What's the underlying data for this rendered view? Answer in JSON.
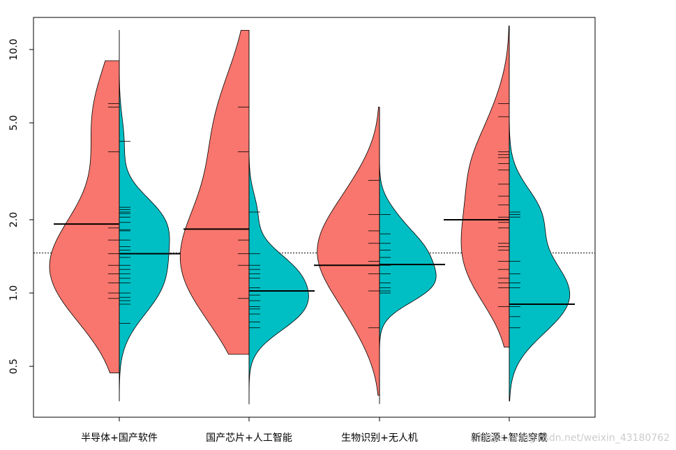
{
  "chart_data": {
    "type": "split-violin (bean plot)",
    "y_scale": "log",
    "ylim": [
      0.3,
      15
    ],
    "y_ticks": [
      0.5,
      1.0,
      2.0,
      5.0,
      10.0
    ],
    "y_tick_labels": [
      "0.5",
      "1.0",
      "2.0",
      "5.0",
      "10.0"
    ],
    "overall_reference_line": 1.46,
    "colors": {
      "left": "#F8766D",
      "right": "#00BFC4"
    },
    "categories": [
      "半导体+国产软件",
      "国产芯片+人工智能",
      "生物识别+无人机",
      "新能源+智能穿戴"
    ],
    "groups": [
      {
        "category": "半导体+国产软件",
        "left": {
          "mean": 1.92,
          "range": [
            0.47,
            9.0
          ],
          "points": [
            0.95,
            1.0,
            1.1,
            1.2,
            1.3,
            1.45,
            1.65,
            1.85,
            3.8,
            5.8,
            6.0
          ]
        },
        "right": {
          "mean": 1.45,
          "range": [
            0.36,
            12.0
          ],
          "points": [
            0.75,
            0.9,
            0.93,
            0.96,
            1.0,
            1.1,
            1.15,
            1.2,
            1.25,
            1.3,
            1.4,
            1.5,
            1.55,
            1.65,
            1.8,
            1.82,
            1.95,
            2.05,
            2.12,
            2.15,
            2.2,
            2.25,
            4.2
          ]
        }
      },
      {
        "category": "国产芯片+人工智能",
        "left": {
          "mean": 1.83,
          "range": [
            0.56,
            12.0
          ],
          "points": [
            0.95,
            1.3,
            1.45,
            1.65,
            3.8,
            5.8
          ]
        },
        "right": {
          "mean": 1.02,
          "range": [
            0.35,
            4.2
          ],
          "points": [
            0.72,
            0.76,
            0.82,
            0.86,
            0.88,
            0.93,
            0.98,
            1.05,
            1.15,
            1.2,
            1.25,
            1.3,
            1.45,
            2.15
          ]
        }
      },
      {
        "category": "生物识别+无人机",
        "left": {
          "mean": 1.3,
          "range": [
            0.38,
            5.8
          ],
          "points": [
            0.72,
            1.02,
            1.2,
            1.35,
            1.6,
            1.8,
            2.1,
            2.9
          ]
        },
        "right": {
          "mean": 1.31,
          "range": [
            0.35,
            5.8
          ],
          "points": [
            1.0,
            1.02,
            1.05,
            1.1,
            1.2,
            1.3,
            1.4,
            1.5,
            1.6,
            1.75,
            2.1
          ]
        }
      },
      {
        "category": "新能源+智能穿戴",
        "left": {
          "mean": 2.0,
          "range": [
            0.6,
            12.5
          ],
          "points": [
            0.88,
            1.05,
            1.1,
            1.15,
            1.25,
            1.35,
            1.5,
            1.55,
            1.6,
            1.85,
            1.95,
            2.05,
            2.3,
            2.5,
            2.8,
            3.2,
            3.4,
            3.6,
            3.7,
            3.8,
            5.3,
            6.0
          ]
        },
        "right": {
          "mean": 0.9,
          "range": [
            0.36,
            12.5
          ],
          "points": [
            0.72,
            0.8,
            0.88,
            0.9,
            1.05,
            1.1,
            1.2,
            1.35,
            2.05,
            2.1,
            2.15
          ]
        }
      }
    ]
  },
  "watermark": "https://blog.csdn.net/weixin_43180762"
}
